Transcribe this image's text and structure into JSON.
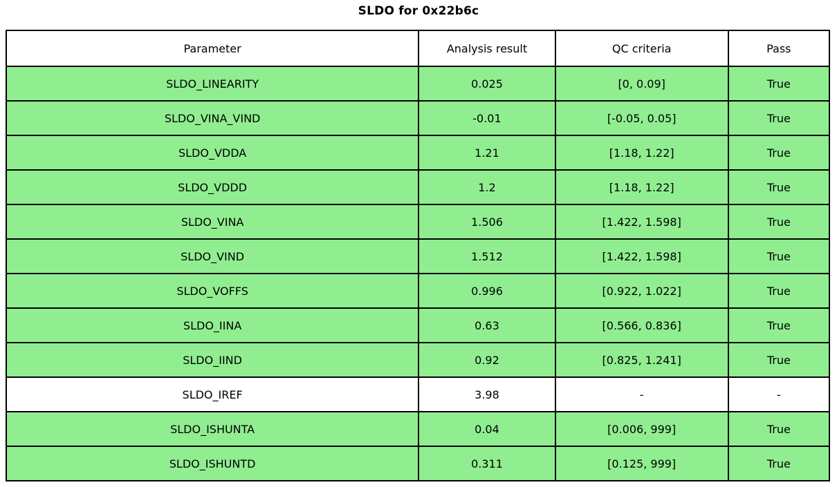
{
  "title": "SLDO for 0x22b6c",
  "colors": {
    "pass_row_background": "#90EE90",
    "neutral_row_background": "#FFFFFF",
    "header_background": "#FFFFFF",
    "border": "#000000",
    "text": "#000000"
  },
  "chart_data": {
    "type": "table",
    "title": "SLDO for 0x22b6c",
    "columns": [
      "Parameter",
      "Analysis result",
      "QC criteria",
      "Pass"
    ],
    "rows": [
      {
        "parameter": "SLDO_LINEARITY",
        "result": "0.025",
        "criteria": "[0, 0.09]",
        "pass": "True",
        "highlight": true
      },
      {
        "parameter": "SLDO_VINA_VIND",
        "result": "-0.01",
        "criteria": "[-0.05, 0.05]",
        "pass": "True",
        "highlight": true
      },
      {
        "parameter": "SLDO_VDDA",
        "result": "1.21",
        "criteria": "[1.18, 1.22]",
        "pass": "True",
        "highlight": true
      },
      {
        "parameter": "SLDO_VDDD",
        "result": "1.2",
        "criteria": "[1.18, 1.22]",
        "pass": "True",
        "highlight": true
      },
      {
        "parameter": "SLDO_VINA",
        "result": "1.506",
        "criteria": "[1.422, 1.598]",
        "pass": "True",
        "highlight": true
      },
      {
        "parameter": "SLDO_VIND",
        "result": "1.512",
        "criteria": "[1.422, 1.598]",
        "pass": "True",
        "highlight": true
      },
      {
        "parameter": "SLDO_VOFFS",
        "result": "0.996",
        "criteria": "[0.922, 1.022]",
        "pass": "True",
        "highlight": true
      },
      {
        "parameter": "SLDO_IINA",
        "result": "0.63",
        "criteria": "[0.566, 0.836]",
        "pass": "True",
        "highlight": true
      },
      {
        "parameter": "SLDO_IIND",
        "result": "0.92",
        "criteria": "[0.825, 1.241]",
        "pass": "True",
        "highlight": true
      },
      {
        "parameter": "SLDO_IREF",
        "result": "3.98",
        "criteria": "-",
        "pass": "-",
        "highlight": false
      },
      {
        "parameter": "SLDO_ISHUNTA",
        "result": "0.04",
        "criteria": "[0.006, 999]",
        "pass": "True",
        "highlight": true
      },
      {
        "parameter": "SLDO_ISHUNTD",
        "result": "0.311",
        "criteria": "[0.125, 999]",
        "pass": "True",
        "highlight": true
      }
    ],
    "layout": {
      "column_width_percent": [
        50.1,
        16.6,
        21.0,
        12.3
      ],
      "grid": true,
      "legend": "none"
    }
  }
}
